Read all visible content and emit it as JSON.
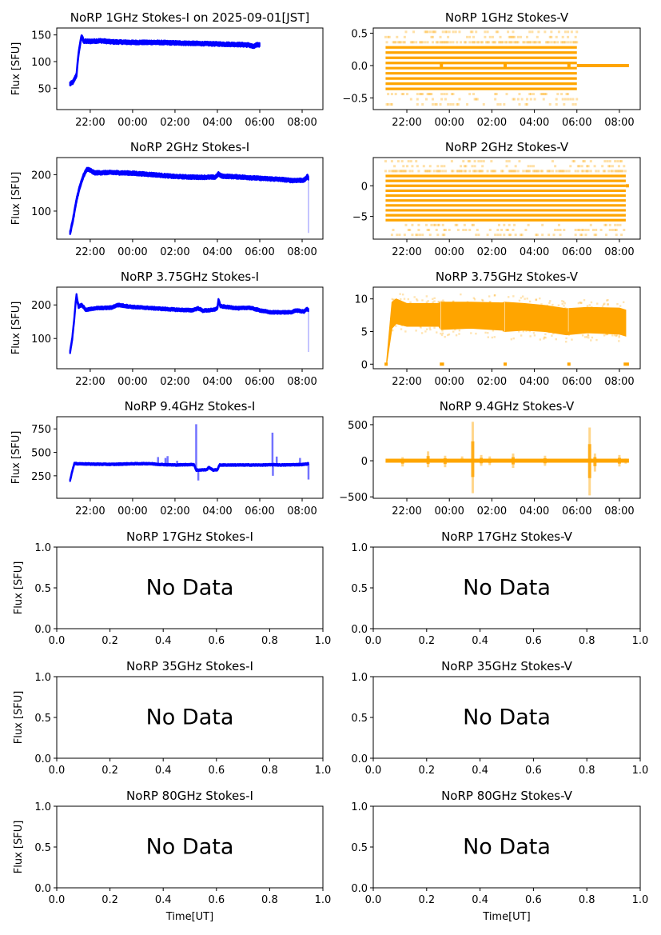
{
  "figure": {
    "date_label": "2025-09-01[JST]",
    "bottom_xlabel": "Time[UT]",
    "ylabel": "Flux [SFU]",
    "no_data_text": "No Data"
  },
  "colors": {
    "stokes_i": "#0000ff",
    "stokes_v": "#ffa500",
    "axes": "#000000"
  },
  "chart_data": [
    {
      "id": "1ghz-i",
      "type": "scatter",
      "title": "NoRP 1GHz Stokes-I on 2025-09-01[JST]",
      "xlabel": "",
      "ylabel": "Flux [SFU]",
      "has_data": true,
      "xlim_hours_from_2000": [
        0.42,
        12.98
      ],
      "x_ticks": [
        "22:00",
        "00:00",
        "02:00",
        "04:00",
        "06:00",
        "08:00"
      ],
      "ylim": [
        10,
        163
      ],
      "y_ticks": [
        50,
        100,
        150
      ],
      "series": [
        {
          "name": "Stokes-I",
          "color": "#0000ff",
          "points": [
            [
              1.05,
              58
            ],
            [
              1.2,
              62
            ],
            [
              1.35,
              75
            ],
            [
              1.45,
              115
            ],
            [
              1.55,
              140
            ],
            [
              1.6,
              147
            ],
            [
              1.7,
              138
            ],
            [
              2.0,
              138
            ],
            [
              2.5,
              139
            ],
            [
              3,
              137
            ],
            [
              4,
              136
            ],
            [
              5,
              136
            ],
            [
              6,
              135
            ],
            [
              7,
              134
            ],
            [
              8,
              133
            ],
            [
              9,
              132
            ],
            [
              9.5,
              131
            ],
            [
              9.7,
              128
            ],
            [
              9.9,
              132
            ],
            [
              10.0,
              131
            ]
          ],
          "spread": 5
        }
      ]
    },
    {
      "id": "1ghz-v",
      "type": "scatter",
      "title": "NoRP 1GHz Stokes-V",
      "xlabel": "",
      "ylabel": "",
      "has_data": true,
      "xlim_hours_from_2000": [
        0.42,
        12.98
      ],
      "x_ticks": [
        "22:00",
        "00:00",
        "02:00",
        "04:00",
        "06:00",
        "08:00"
      ],
      "ylim": [
        -0.68,
        0.58
      ],
      "y_ticks": [
        -0.5,
        0.0,
        0.5
      ],
      "quantized_levels": [
        -0.6,
        -0.52,
        -0.44,
        -0.36,
        -0.28,
        -0.2,
        -0.12,
        -0.04,
        0.04,
        0.12,
        0.2,
        0.28,
        0.36,
        0.44,
        0.52
      ],
      "dense_levels": [
        -0.36,
        -0.28,
        -0.2,
        -0.12,
        -0.04,
        0.04,
        0.12,
        0.2,
        0.28
      ],
      "data_range_hours": [
        1.0,
        10.0
      ],
      "zero_segments": [
        [
          3.55,
          3.7
        ],
        [
          6.55,
          6.7
        ],
        [
          9.55,
          9.7
        ],
        [
          10.0,
          12.45
        ]
      ],
      "series": [
        {
          "name": "Stokes-V",
          "color": "#ffa500"
        }
      ]
    },
    {
      "id": "2ghz-i",
      "type": "scatter",
      "title": "NoRP 2GHz Stokes-I",
      "xlabel": "",
      "ylabel": "Flux [SFU]",
      "has_data": true,
      "xlim_hours_from_2000": [
        0.42,
        12.98
      ],
      "x_ticks": [
        "22:00",
        "00:00",
        "02:00",
        "04:00",
        "06:00",
        "08:00"
      ],
      "ylim": [
        23,
        247
      ],
      "y_ticks": [
        100,
        200
      ],
      "series": [
        {
          "name": "Stokes-I",
          "color": "#0000ff",
          "points": [
            [
              1.05,
              40
            ],
            [
              1.2,
              80
            ],
            [
              1.35,
              130
            ],
            [
              1.5,
              165
            ],
            [
              1.7,
              200
            ],
            [
              1.85,
              215
            ],
            [
              2.0,
              212
            ],
            [
              2.2,
              205
            ],
            [
              3,
              206
            ],
            [
              4,
              204
            ],
            [
              5,
              200
            ],
            [
              6,
              195
            ],
            [
              7,
              193
            ],
            [
              7.9,
              193
            ],
            [
              8.05,
              202
            ],
            [
              8.2,
              196
            ],
            [
              9,
              194
            ],
            [
              10,
              190
            ],
            [
              11,
              187
            ],
            [
              11.5,
              184
            ],
            [
              12.1,
              185
            ],
            [
              12.25,
              195
            ],
            [
              12.3,
              190
            ]
          ],
          "spread": 7,
          "dip": {
            "x": 12.3,
            "min": 40
          }
        }
      ]
    },
    {
      "id": "2ghz-v",
      "type": "scatter",
      "title": "NoRP 2GHz Stokes-V",
      "xlabel": "",
      "ylabel": "",
      "has_data": true,
      "xlim_hours_from_2000": [
        0.42,
        12.98
      ],
      "x_ticks": [
        "22:00",
        "00:00",
        "02:00",
        "04:00",
        "06:00",
        "08:00"
      ],
      "ylim": [
        -8.7,
        4.6
      ],
      "y_ticks": [
        -5,
        0
      ],
      "quantized_levels": [
        -8.0,
        -7.2,
        -6.4,
        -5.6,
        -4.8,
        -4.0,
        -3.2,
        -2.4,
        -1.6,
        -0.8,
        0.0,
        0.8,
        1.6,
        2.4,
        3.2,
        4.0
      ],
      "dense_levels": [
        -5.6,
        -4.8,
        -4.0,
        -3.2,
        -2.4,
        -1.6,
        -0.8,
        0.0,
        0.8,
        1.6
      ],
      "data_range_hours": [
        1.0,
        12.3
      ],
      "zero_segments": [
        [
          12.3,
          12.45
        ]
      ],
      "series": [
        {
          "name": "Stokes-V",
          "color": "#ffa500"
        }
      ]
    },
    {
      "id": "3.75ghz-i",
      "type": "scatter",
      "title": "NoRP 3.75GHz Stokes-I",
      "xlabel": "",
      "ylabel": "Flux [SFU]",
      "has_data": true,
      "xlim_hours_from_2000": [
        0.42,
        12.98
      ],
      "x_ticks": [
        "22:00",
        "00:00",
        "02:00",
        "04:00",
        "06:00",
        "08:00"
      ],
      "ylim": [
        10,
        253
      ],
      "y_ticks": [
        100,
        200
      ],
      "series": [
        {
          "name": "Stokes-I",
          "color": "#0000ff",
          "points": [
            [
              1.05,
              60
            ],
            [
              1.15,
              100
            ],
            [
              1.25,
              160
            ],
            [
              1.3,
              200
            ],
            [
              1.35,
              228
            ],
            [
              1.45,
              195
            ],
            [
              1.6,
              200
            ],
            [
              1.8,
              185
            ],
            [
              2.2,
              190
            ],
            [
              3,
              192
            ],
            [
              3.3,
              200
            ],
            [
              4,
              194
            ],
            [
              5,
              190
            ],
            [
              6,
              186
            ],
            [
              6.8,
              184
            ],
            [
              7.1,
              190
            ],
            [
              7.3,
              183
            ],
            [
              7.8,
              185
            ],
            [
              8.0,
              190
            ],
            [
              8.05,
              215
            ],
            [
              8.15,
              196
            ],
            [
              9,
              190
            ],
            [
              9.5,
              192
            ],
            [
              10,
              184
            ],
            [
              10.5,
              178
            ],
            [
              11,
              178
            ],
            [
              11.5,
              178
            ],
            [
              11.7,
              184
            ],
            [
              12.1,
              180
            ],
            [
              12.2,
              188
            ],
            [
              12.3,
              185
            ]
          ],
          "spread": 6,
          "dip": {
            "x": 12.3,
            "min": 60
          }
        }
      ]
    },
    {
      "id": "3.75ghz-v",
      "type": "scatter",
      "title": "NoRP 3.75GHz Stokes-V",
      "xlabel": "",
      "ylabel": "",
      "has_data": true,
      "xlim_hours_from_2000": [
        0.42,
        12.98
      ],
      "x_ticks": [
        "22:00",
        "00:00",
        "02:00",
        "04:00",
        "06:00",
        "08:00"
      ],
      "ylim": [
        -0.7,
        11.8
      ],
      "y_ticks": [
        0,
        5,
        10
      ],
      "band": [
        [
          1.05,
          0,
          0.5
        ],
        [
          1.3,
          5.5,
          9.5
        ],
        [
          1.5,
          6.2,
          10.0
        ],
        [
          2.0,
          5.8,
          9.3
        ],
        [
          3.5,
          5.8,
          9.3
        ],
        [
          3.6,
          5.3,
          9.5
        ],
        [
          5,
          5.5,
          9.5
        ],
        [
          6.5,
          5.2,
          9.4
        ],
        [
          6.6,
          5.0,
          9.5
        ],
        [
          7.5,
          5.2,
          9.3
        ],
        [
          8.5,
          5.0,
          9.0
        ],
        [
          9.5,
          4.5,
          8.5
        ],
        [
          10.5,
          4.8,
          8.7
        ],
        [
          12.0,
          4.6,
          8.6
        ],
        [
          12.3,
          4.3,
          8.3
        ]
      ],
      "zero_segments": [
        [
          0.95,
          1.1
        ],
        [
          3.55,
          3.75
        ],
        [
          6.55,
          6.7
        ],
        [
          9.55,
          9.7
        ],
        [
          12.2,
          12.45
        ]
      ],
      "series": [
        {
          "name": "Stokes-V",
          "color": "#ffa500"
        }
      ]
    },
    {
      "id": "9.4ghz-i",
      "type": "scatter",
      "title": "NoRP 9.4GHz Stokes-I",
      "xlabel": "",
      "ylabel": "Flux [SFU]",
      "has_data": true,
      "xlim_hours_from_2000": [
        0.42,
        12.98
      ],
      "x_ticks": [
        "22:00",
        "00:00",
        "02:00",
        "04:00",
        "06:00",
        "08:00"
      ],
      "ylim": [
        10,
        880
      ],
      "y_ticks": [
        250,
        500,
        750
      ],
      "series": [
        {
          "name": "Stokes-I",
          "color": "#0000ff",
          "points": [
            [
              1.05,
              200
            ],
            [
              1.15,
              300
            ],
            [
              1.25,
              380
            ],
            [
              2,
              375
            ],
            [
              3,
              372
            ],
            [
              4,
              378
            ],
            [
              4.8,
              380
            ],
            [
              5.2,
              372
            ],
            [
              6,
              365
            ],
            [
              6.9,
              370
            ],
            [
              7.0,
              310
            ],
            [
              7.5,
              315
            ],
            [
              7.6,
              340
            ],
            [
              7.8,
              310
            ],
            [
              8.0,
              315
            ],
            [
              8.1,
              365
            ],
            [
              9,
              365
            ],
            [
              10,
              365
            ],
            [
              10.7,
              368
            ],
            [
              11,
              365
            ],
            [
              12,
              370
            ],
            [
              12.3,
              378
            ]
          ],
          "spread": 14,
          "spikes": [
            [
              5.2,
              450
            ],
            [
              5.55,
              440
            ],
            [
              5.65,
              460
            ],
            [
              6.1,
              410
            ],
            [
              7.0,
              800
            ],
            [
              7.1,
              200
            ],
            [
              10.6,
              710
            ],
            [
              10.62,
              250
            ],
            [
              10.8,
              455
            ],
            [
              11.9,
              440
            ],
            [
              12.3,
              210
            ]
          ]
        }
      ]
    },
    {
      "id": "9.4ghz-v",
      "type": "scatter",
      "title": "NoRP 9.4GHz Stokes-V",
      "xlabel": "",
      "ylabel": "",
      "has_data": true,
      "xlim_hours_from_2000": [
        0.42,
        12.98
      ],
      "x_ticks": [
        "22:00",
        "00:00",
        "02:00",
        "04:00",
        "06:00",
        "08:00"
      ],
      "ylim": [
        -520,
        610
      ],
      "y_ticks": [
        -500,
        0,
        500
      ],
      "baseline_range_hours": [
        1.0,
        12.45
      ],
      "spikes": [
        [
          1.8,
          -80,
          50
        ],
        [
          3.0,
          -90,
          130
        ],
        [
          3.8,
          -90,
          70
        ],
        [
          4.6,
          20,
          60
        ],
        [
          5.1,
          -450,
          540
        ],
        [
          5.5,
          -70,
          80
        ],
        [
          5.9,
          -60,
          60
        ],
        [
          7.0,
          -100,
          100
        ],
        [
          8.5,
          -70,
          70
        ],
        [
          10.6,
          -480,
          460
        ],
        [
          10.85,
          -150,
          100
        ],
        [
          12.0,
          -80,
          80
        ],
        [
          12.3,
          -40,
          30
        ]
      ],
      "series": [
        {
          "name": "Stokes-V",
          "color": "#ffa500"
        }
      ]
    },
    {
      "id": "17ghz-i",
      "type": "empty",
      "title": "NoRP 17GHz Stokes-I",
      "ylabel": "Flux [SFU]",
      "xlabel": "",
      "has_data": false,
      "xlim": [
        0,
        1
      ],
      "ylim": [
        0,
        1
      ],
      "x_ticks": [
        "0.0",
        "0.2",
        "0.4",
        "0.6",
        "0.8",
        "1.0"
      ],
      "y_ticks": [
        "0.0",
        "0.5",
        "1.0"
      ]
    },
    {
      "id": "17ghz-v",
      "type": "empty",
      "title": "NoRP 17GHz Stokes-V",
      "ylabel": "",
      "xlabel": "",
      "has_data": false,
      "xlim": [
        0,
        1
      ],
      "ylim": [
        0,
        1
      ],
      "x_ticks": [
        "0.0",
        "0.2",
        "0.4",
        "0.6",
        "0.8",
        "1.0"
      ],
      "y_ticks": [
        "0.0",
        "0.5",
        "1.0"
      ]
    },
    {
      "id": "35ghz-i",
      "type": "empty",
      "title": "NoRP 35GHz Stokes-I",
      "ylabel": "Flux [SFU]",
      "xlabel": "",
      "has_data": false,
      "xlim": [
        0,
        1
      ],
      "ylim": [
        0,
        1
      ],
      "x_ticks": [
        "0.0",
        "0.2",
        "0.4",
        "0.6",
        "0.8",
        "1.0"
      ],
      "y_ticks": [
        "0.0",
        "0.5",
        "1.0"
      ]
    },
    {
      "id": "35ghz-v",
      "type": "empty",
      "title": "NoRP 35GHz Stokes-V",
      "ylabel": "",
      "xlabel": "",
      "has_data": false,
      "xlim": [
        0,
        1
      ],
      "ylim": [
        0,
        1
      ],
      "x_ticks": [
        "0.0",
        "0.2",
        "0.4",
        "0.6",
        "0.8",
        "1.0"
      ],
      "y_ticks": [
        "0.0",
        "0.5",
        "1.0"
      ]
    },
    {
      "id": "80ghz-i",
      "type": "empty",
      "title": "NoRP 80GHz Stokes-I",
      "ylabel": "Flux [SFU]",
      "xlabel": "Time[UT]",
      "has_data": false,
      "xlim": [
        0,
        1
      ],
      "ylim": [
        0,
        1
      ],
      "x_ticks": [
        "0.0",
        "0.2",
        "0.4",
        "0.6",
        "0.8",
        "1.0"
      ],
      "y_ticks": [
        "0.0",
        "0.5",
        "1.0"
      ]
    },
    {
      "id": "80ghz-v",
      "type": "empty",
      "title": "NoRP 80GHz Stokes-V",
      "ylabel": "",
      "xlabel": "Time[UT]",
      "has_data": false,
      "xlim": [
        0,
        1
      ],
      "ylim": [
        0,
        1
      ],
      "x_ticks": [
        "0.0",
        "0.2",
        "0.4",
        "0.6",
        "0.8",
        "1.0"
      ],
      "y_ticks": [
        "0.0",
        "0.5",
        "1.0"
      ]
    }
  ]
}
